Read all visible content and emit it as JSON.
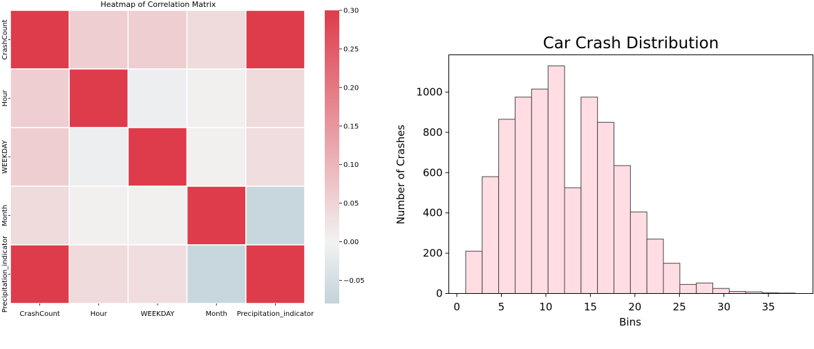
{
  "chart_data": [
    {
      "type": "heatmap",
      "title": "Heatmap of Correlation Matrix",
      "labels": [
        "CrashCount",
        "Hour",
        "WEEKDAY",
        "Month",
        "Precipitation_indicator"
      ],
      "matrix": [
        [
          0.3,
          0.06,
          0.06,
          0.04,
          0.3
        ],
        [
          0.06,
          0.3,
          -0.01,
          0.005,
          0.04
        ],
        [
          0.06,
          -0.01,
          0.3,
          0.005,
          0.035
        ],
        [
          0.04,
          0.005,
          0.005,
          0.3,
          -0.07
        ],
        [
          0.3,
          0.04,
          0.035,
          -0.07,
          0.3
        ]
      ],
      "colorbar": {
        "min": -0.08,
        "max": 0.3,
        "ticks": [
          -0.05,
          0.0,
          0.05,
          0.1,
          0.15,
          0.2,
          0.25,
          0.3
        ],
        "tick_labels": [
          "−0.05",
          "0.00",
          "0.05",
          "0.10",
          "0.15",
          "0.20",
          "0.25",
          "0.30"
        ],
        "colors": {
          "low": "#c2d3da",
          "mid": "#f2f2f2",
          "high": "#de3c4b"
        }
      }
    },
    {
      "type": "bar",
      "title": "Car Crash Distribution",
      "xlabel": "Bins",
      "ylabel": "Number of Crashes",
      "bin_edges": [
        1.0,
        2.85,
        4.7,
        6.55,
        8.4,
        10.25,
        12.1,
        13.95,
        15.8,
        17.65,
        19.5,
        21.35,
        23.2,
        25.05,
        26.9,
        28.75,
        30.6,
        32.45,
        34.3,
        36.15,
        38.0
      ],
      "values": [
        210,
        580,
        865,
        975,
        1015,
        1130,
        525,
        975,
        850,
        635,
        405,
        270,
        150,
        45,
        52,
        25,
        10,
        8,
        3,
        2
      ],
      "xlim": [
        -0.9,
        40.0
      ],
      "ylim": [
        0,
        1185
      ],
      "xticks": [
        0,
        5,
        10,
        15,
        20,
        25,
        30,
        35
      ],
      "yticks": [
        0,
        200,
        400,
        600,
        800,
        1000
      ],
      "bar_color": "#ffdde3",
      "edge_color": "#444444"
    }
  ]
}
